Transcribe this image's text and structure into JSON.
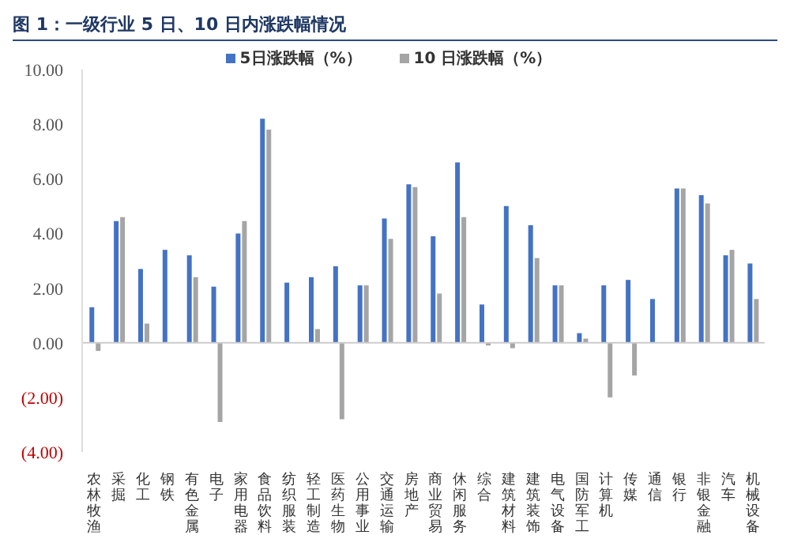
{
  "chart_data": {
    "type": "bar",
    "title": "图 1：一级行业 5 日、10 日内涨跌幅情况",
    "categories": [
      "农林牧渔",
      "采掘",
      "化工",
      "钢铁",
      "有色金属",
      "电子",
      "家用电器",
      "食品饮料",
      "纺织服装",
      "轻工制造",
      "医药生物",
      "公用事业",
      "交通运输",
      "房地产",
      "商业贸易",
      "休闲服务",
      "综合",
      "建筑材料",
      "建筑装饰",
      "电气设备",
      "国防军工",
      "计算机",
      "传媒",
      "通信",
      "银行",
      "非银金融",
      "汽车",
      "机械设备"
    ],
    "series": [
      {
        "name": "5日涨跌幅（%）",
        "color": "#4472c4",
        "values": [
          1.3,
          4.45,
          2.7,
          3.4,
          3.2,
          2.05,
          4.0,
          8.2,
          2.2,
          2.4,
          2.8,
          2.1,
          4.55,
          5.8,
          3.9,
          6.6,
          1.4,
          5.0,
          4.3,
          2.1,
          0.35,
          2.1,
          2.3,
          1.6,
          5.65,
          5.4,
          3.2,
          2.9
        ]
      },
      {
        "name": "10 日涨跌幅（%）",
        "color": "#a5a5a5",
        "values": [
          -0.3,
          4.6,
          0.7,
          0,
          2.4,
          -2.9,
          4.45,
          7.8,
          0,
          0.5,
          -2.8,
          2.1,
          3.8,
          5.7,
          1.8,
          4.6,
          -0.1,
          -0.2,
          3.1,
          2.1,
          0.15,
          -2.0,
          -1.2,
          0,
          5.65,
          5.1,
          3.4,
          1.6
        ]
      }
    ],
    "ylim": [
      -4,
      10
    ],
    "yticks": [
      {
        "value": -4,
        "label": "(4.00)"
      },
      {
        "value": -2,
        "label": "(2.00)"
      },
      {
        "value": 0,
        "label": "0.00"
      },
      {
        "value": 2,
        "label": "2.00"
      },
      {
        "value": 4,
        "label": "4.00"
      },
      {
        "value": 6,
        "label": "6.00"
      },
      {
        "value": 8,
        "label": "8.00"
      },
      {
        "value": 10,
        "label": "10.00"
      }
    ],
    "ref_lines": [
      {
        "axis": "y",
        "value": 0,
        "color": "#cccccc"
      }
    ],
    "legend": "top",
    "grid": false
  }
}
